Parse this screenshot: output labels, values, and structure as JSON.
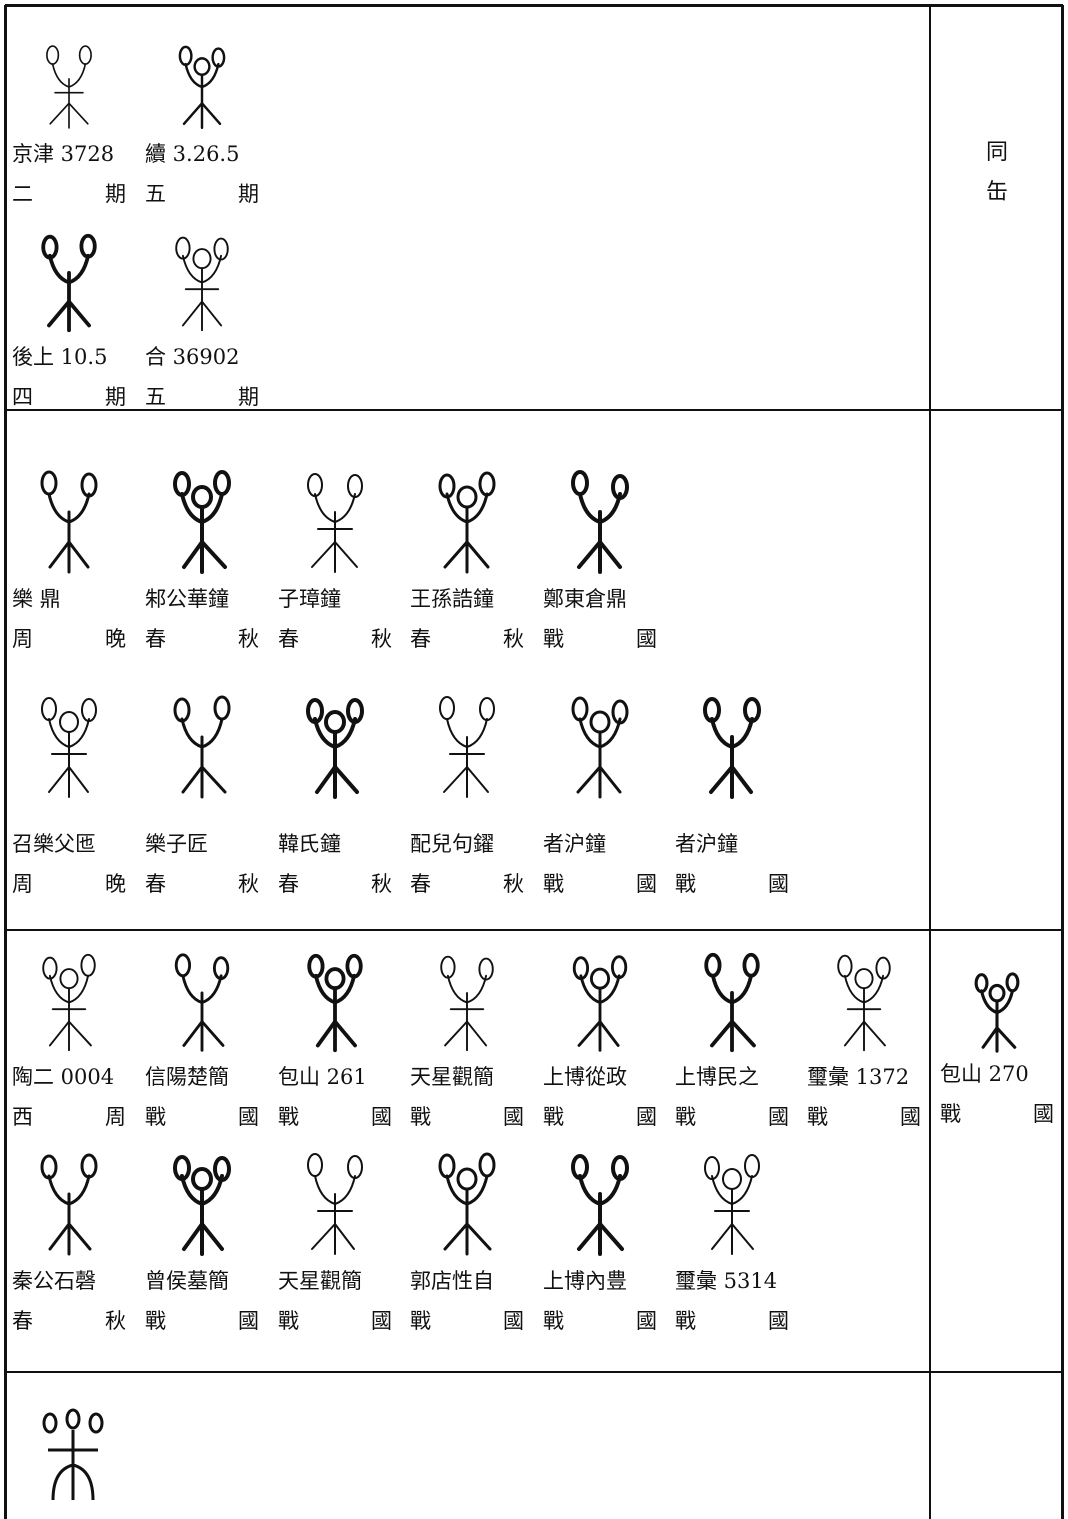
{
  "rows": [
    {
      "entries": [
        {
          "source": "京津 3728",
          "period": "二 期"
        },
        {
          "source": "續 3.26.5",
          "period": "五 期"
        },
        {
          "source": "後上 10.5",
          "period": "四 期"
        },
        {
          "source": "合 36902",
          "period": "五 期"
        }
      ],
      "note": [
        "同",
        "缶"
      ]
    },
    {
      "entries": [
        {
          "source": "樂 鼎",
          "period": "周 晚"
        },
        {
          "source": "邾公華鐘",
          "period": "春 秋"
        },
        {
          "source": "子璋鐘",
          "period": "春 秋"
        },
        {
          "source": "王孫誥鐘",
          "period": "春 秋"
        },
        {
          "source": "鄭東倉鼎",
          "period": "戰 國"
        },
        {
          "source": "召樂父匜",
          "period": "周 晚"
        },
        {
          "source": "樂子匠",
          "period": "春 秋"
        },
        {
          "source": "𩋾氏鐘",
          "period": "春 秋"
        },
        {
          "source": "配兒句鑃",
          "period": "春 秋"
        },
        {
          "source": "者沪鐘",
          "period": "戰 國"
        },
        {
          "source": "者沪鐘",
          "period": "戰 國"
        }
      ]
    },
    {
      "entries": [
        {
          "source": "陶二 0004",
          "period": "西 周"
        },
        {
          "source": "信陽楚簡",
          "period": "戰 國"
        },
        {
          "source": "包山 261",
          "period": "戰 國"
        },
        {
          "source": "天星觀簡",
          "period": "戰 國"
        },
        {
          "source": "上博從政",
          "period": "戰 國"
        },
        {
          "source": "上博民之",
          "period": "戰 國"
        },
        {
          "source": "璽彙 1372",
          "period": "戰 國"
        },
        {
          "source": "秦公石磬",
          "period": "春 秋"
        },
        {
          "source": "曾侯墓簡",
          "period": "戰 國"
        },
        {
          "source": "天星觀簡",
          "period": "戰 國"
        },
        {
          "source": "郭店性自",
          "period": "戰 國"
        },
        {
          "source": "上博內豊",
          "period": "戰 國"
        },
        {
          "source": "璽彙 5314",
          "period": "戰 國"
        }
      ],
      "side": {
        "source": "包山 270",
        "period": "戰 國"
      }
    }
  ]
}
